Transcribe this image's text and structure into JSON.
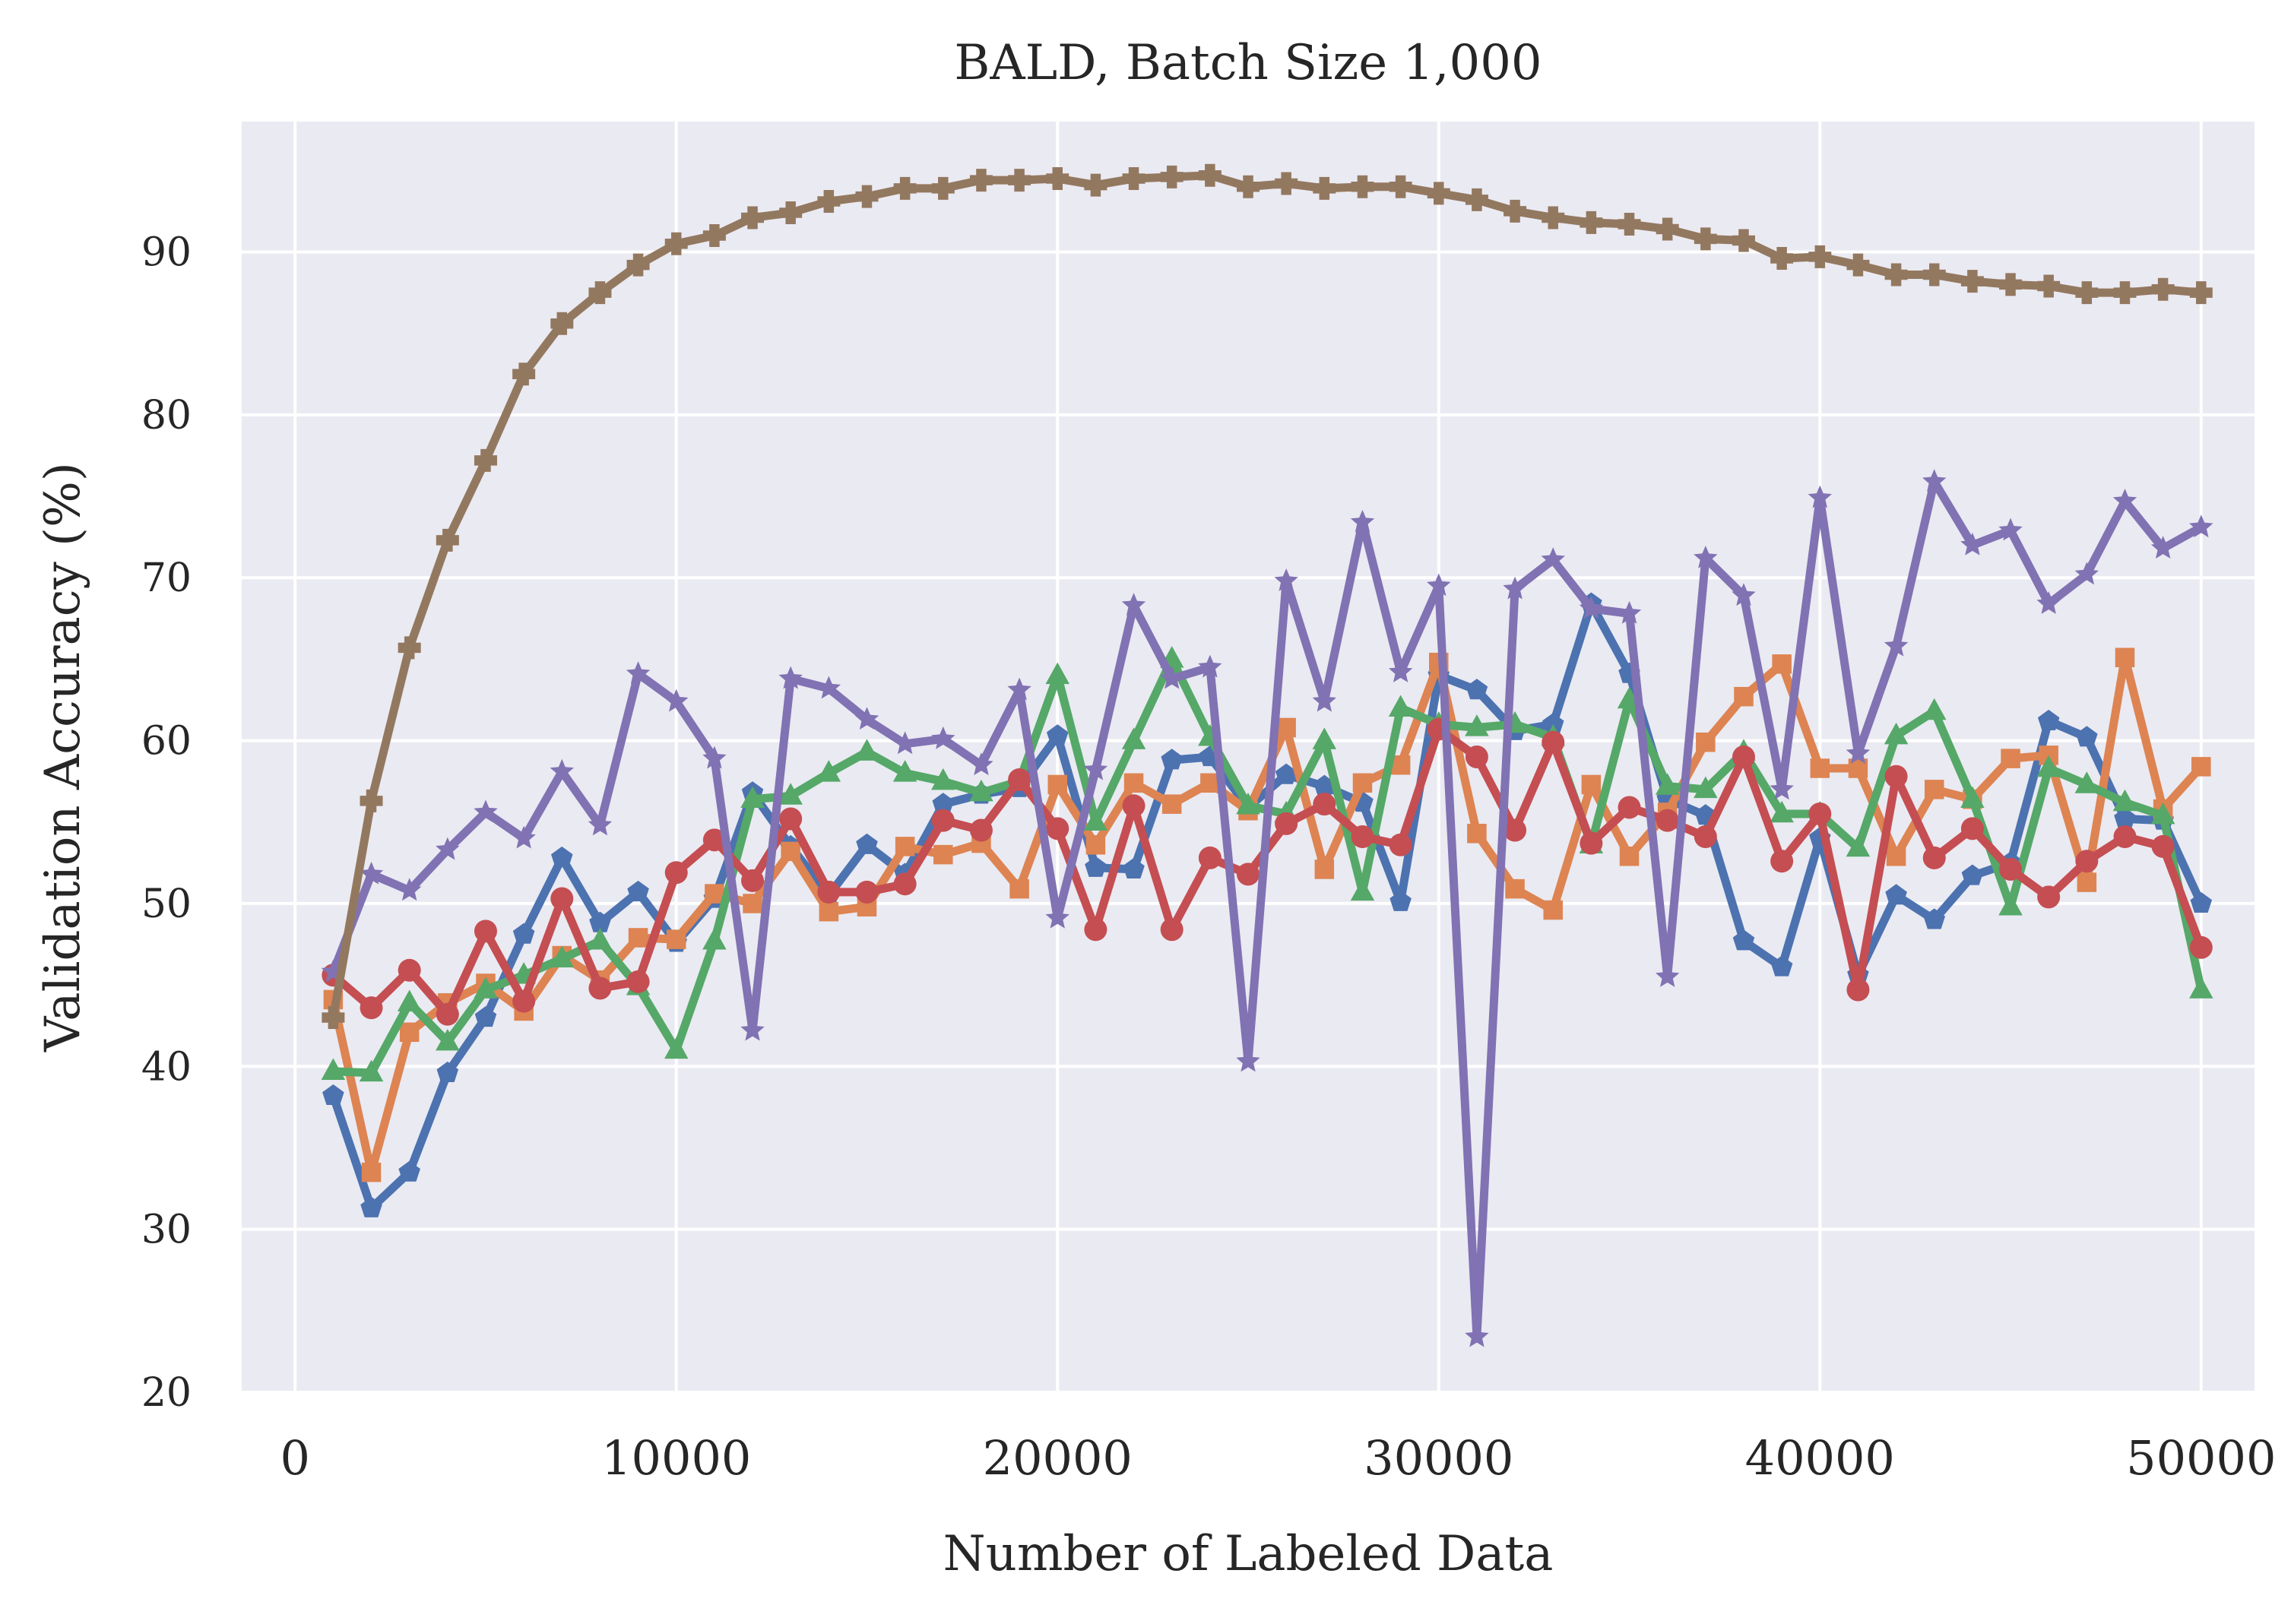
{
  "chart_data": {
    "type": "line",
    "title": "BALD, Batch Size 1,000",
    "xlabel": "Number of Labeled Data",
    "ylabel": "Validation Accuracy (%)",
    "xlim": [
      -1400,
      51400
    ],
    "ylim": [
      20,
      98
    ],
    "xticks": [
      0,
      10000,
      20000,
      30000,
      40000,
      50000
    ],
    "yticks": [
      20,
      30,
      40,
      50,
      60,
      70,
      80,
      90
    ],
    "grid": true,
    "legend": "none",
    "x": [
      1000,
      2000,
      3000,
      4000,
      5000,
      6000,
      7000,
      8000,
      9000,
      10000,
      11000,
      12000,
      13000,
      14000,
      15000,
      16000,
      17000,
      18000,
      19000,
      20000,
      21000,
      22000,
      23000,
      24000,
      25000,
      26000,
      27000,
      28000,
      29000,
      30000,
      31000,
      32000,
      33000,
      34000,
      35000,
      36000,
      37000,
      38000,
      39000,
      40000,
      41000,
      42000,
      43000,
      44000,
      45000,
      46000,
      47000,
      48000,
      49000,
      50000
    ],
    "series": [
      {
        "color": "#4c72b0",
        "marker": "pentagon",
        "values": [
          38.2,
          31.3,
          33.5,
          39.6,
          43.0,
          48.1,
          52.8,
          48.8,
          50.7,
          47.6,
          50.3,
          56.8,
          53.5,
          50.5,
          53.6,
          51.8,
          56.1,
          56.7,
          57.1,
          60.3,
          52.2,
          52.1,
          58.8,
          59.0,
          55.9,
          57.9,
          57.2,
          56.2,
          50.1,
          64.0,
          63.1,
          60.6,
          61.0,
          68.4,
          64.1,
          56.4,
          55.4,
          47.7,
          46.1,
          54.0,
          45.6,
          50.5,
          49.0,
          51.7,
          52.5,
          61.2,
          60.2,
          55.2,
          55.1,
          50.0
        ]
      },
      {
        "color": "#dd8452",
        "marker": "square",
        "values": [
          44.1,
          33.5,
          42.1,
          43.9,
          45.1,
          43.4,
          46.8,
          45.3,
          47.9,
          47.8,
          50.6,
          50.0,
          53.2,
          49.5,
          49.8,
          53.5,
          53.0,
          53.7,
          50.9,
          57.3,
          53.6,
          57.4,
          56.1,
          57.4,
          55.7,
          60.8,
          52.1,
          57.4,
          58.5,
          64.8,
          54.3,
          50.9,
          49.6,
          57.3,
          52.9,
          55.6,
          59.9,
          62.7,
          64.7,
          58.3,
          58.3,
          52.9,
          57.0,
          56.4,
          58.9,
          59.1,
          51.3,
          65.1,
          55.8,
          58.4
        ]
      },
      {
        "color": "#55a868",
        "marker": "triangle",
        "values": [
          39.7,
          39.6,
          43.9,
          41.5,
          44.7,
          45.6,
          46.6,
          47.7,
          44.9,
          41.0,
          47.7,
          56.4,
          56.6,
          58.0,
          59.3,
          58.0,
          57.5,
          56.8,
          57.5,
          64.0,
          55.0,
          60.0,
          65.0,
          60.2,
          56.0,
          55.5,
          60.0,
          50.7,
          62.0,
          61.0,
          60.8,
          61.0,
          60.2,
          53.6,
          62.5,
          57.2,
          57.0,
          59.3,
          55.5,
          55.5,
          53.4,
          60.3,
          61.8,
          56.4,
          49.8,
          58.3,
          57.3,
          56.2,
          55.4,
          44.7
        ]
      },
      {
        "color": "#c44e52",
        "marker": "circle",
        "values": [
          45.6,
          43.6,
          45.9,
          43.2,
          48.3,
          44.0,
          50.3,
          44.8,
          45.2,
          51.9,
          53.9,
          51.4,
          55.2,
          50.7,
          50.7,
          51.2,
          55.1,
          54.5,
          57.6,
          54.6,
          48.4,
          56.0,
          48.4,
          52.8,
          51.8,
          54.9,
          56.1,
          54.1,
          53.6,
          60.7,
          59.0,
          54.5,
          59.9,
          53.7,
          55.9,
          55.1,
          54.1,
          59.0,
          52.6,
          55.5,
          44.7,
          57.8,
          52.8,
          54.6,
          52.1,
          50.4,
          52.6,
          54.1,
          53.5,
          47.3
        ]
      },
      {
        "color": "#8172b3",
        "marker": "star",
        "values": [
          45.8,
          51.8,
          50.8,
          53.3,
          55.6,
          54.0,
          58.1,
          54.8,
          64.1,
          62.4,
          58.9,
          42.2,
          63.8,
          63.2,
          61.3,
          59.8,
          60.1,
          58.5,
          63.1,
          49.1,
          58.2,
          68.3,
          63.8,
          64.5,
          40.3,
          69.8,
          62.4,
          73.4,
          64.2,
          69.5,
          23.4,
          69.3,
          71.1,
          68.1,
          67.8,
          45.5,
          71.2,
          68.9,
          57.0,
          74.9,
          59.2,
          65.8,
          75.9,
          72.0,
          72.9,
          68.4,
          70.2,
          74.7,
          71.8,
          73.1
        ]
      },
      {
        "color": "#937860",
        "marker": "cross",
        "values": [
          43.0,
          56.3,
          65.7,
          72.3,
          77.2,
          82.5,
          85.6,
          87.5,
          89.2,
          90.5,
          91.0,
          92.1,
          92.4,
          93.1,
          93.4,
          93.9,
          93.9,
          94.4,
          94.4,
          94.5,
          94.1,
          94.5,
          94.6,
          94.7,
          94.0,
          94.2,
          93.9,
          94.0,
          94.0,
          93.6,
          93.2,
          92.5,
          92.1,
          91.8,
          91.7,
          91.4,
          90.8,
          90.7,
          89.6,
          89.7,
          89.2,
          88.6,
          88.6,
          88.2,
          88.0,
          87.9,
          87.5,
          87.5,
          87.7,
          87.5
        ]
      }
    ]
  }
}
